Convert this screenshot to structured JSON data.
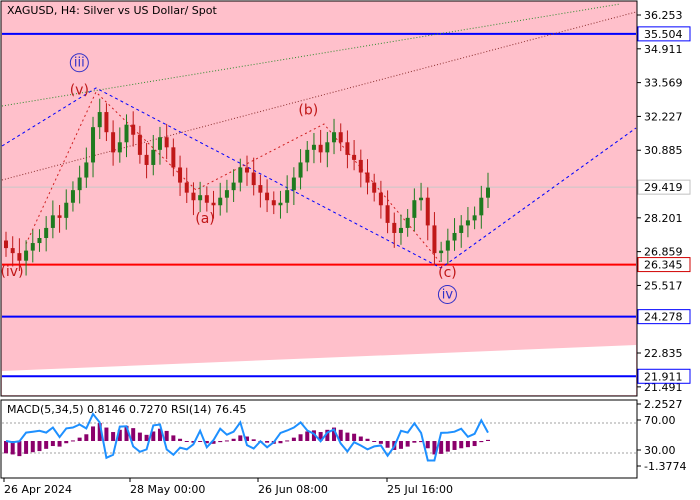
{
  "header": {
    "title": "XAGUSD, H4:  Silver vs US Dollar/ Spot"
  },
  "colors": {
    "background": "#ffffff",
    "chart_area": "#ffc0cb",
    "support_line": "#ff0000",
    "level_line": "#0000ff",
    "wave_label": "#c01818",
    "primary_wave": "#3030c8",
    "dotted_trend": "#0000ff",
    "rsi_line": "#1e90ff",
    "macd_hist": "#8b006b"
  },
  "price_axis": {
    "ticks": [
      "36.253",
      "34.911",
      "33.569",
      "32.227",
      "30.885",
      "28.201",
      "26.859",
      "25.517",
      "22.835",
      "21.491"
    ],
    "tick_values": [
      36.253,
      34.911,
      33.569,
      32.227,
      30.885,
      28.201,
      26.859,
      25.517,
      22.835,
      21.491
    ]
  },
  "price_markers": [
    {
      "label": "35.504",
      "value": 35.504,
      "kind": "level"
    },
    {
      "label": "29.419",
      "value": 29.419,
      "kind": "current"
    },
    {
      "label": "26.345",
      "value": 26.345,
      "kind": "support"
    },
    {
      "label": "24.278",
      "value": 24.278,
      "kind": "level"
    },
    {
      "label": "21.911",
      "value": 21.911,
      "kind": "level"
    }
  ],
  "wave_labels": [
    {
      "text": "(iv)",
      "style": "minor",
      "date": "2024-04-26",
      "price": 25.9
    },
    {
      "text": "(v)",
      "style": "minor",
      "date": "2024-05-11",
      "price": 33.1
    },
    {
      "text": "iii",
      "style": "primary",
      "date": "2024-05-11",
      "price": 34.2
    },
    {
      "text": "(a)",
      "style": "minor",
      "date": "2024-06-08",
      "price": 28.0
    },
    {
      "text": "(b)",
      "style": "minor",
      "date": "2024-07-01",
      "price": 32.3
    },
    {
      "text": "(c)",
      "style": "minor",
      "date": "2024-08-01",
      "price": 25.85
    },
    {
      "text": "iv",
      "style": "primary",
      "date": "2024-08-01",
      "price": 25.0
    }
  ],
  "chart_data": {
    "type": "candlestick",
    "symbol": "XAGUSD",
    "timeframe": "H4",
    "x_ticks": [
      "26 Apr 2024",
      "28 May 00:00",
      "26 Jun 08:00",
      "25 Jul 16:00"
    ],
    "ylim": [
      21.0,
      36.7
    ],
    "current_price": 29.419,
    "horizontal_levels": [
      35.504,
      26.345,
      24.278,
      21.911
    ],
    "series": [
      {
        "name": "XAGUSD",
        "close": [
          27.0,
          26.8,
          26.5,
          26.9,
          27.2,
          27.4,
          27.8,
          28.3,
          28.2,
          28.8,
          29.3,
          29.8,
          30.4,
          31.8,
          32.4,
          31.6,
          30.8,
          31.2,
          31.9,
          31.5,
          30.7,
          30.3,
          30.9,
          31.4,
          31.0,
          30.2,
          29.6,
          29.2,
          28.9,
          29.1,
          28.8,
          28.7,
          29.0,
          29.3,
          29.6,
          30.2,
          30.0,
          29.5,
          29.2,
          28.9,
          28.7,
          28.8,
          29.3,
          29.8,
          30.4,
          30.9,
          31.1,
          30.8,
          31.2,
          31.6,
          31.2,
          30.7,
          30.5,
          30.0,
          29.6,
          29.2,
          28.7,
          28.0,
          27.6,
          27.8,
          28.2,
          28.9,
          29.0,
          27.9,
          26.8,
          26.9,
          27.3,
          27.6,
          27.9,
          28.1,
          28.3,
          29.0,
          29.4
        ]
      }
    ]
  },
  "indicators": {
    "label": "MACD(5,34,5) 0.8146 0.7270 RSI(14) 76.45",
    "axis_ticks": [
      "2.2527",
      "70.00",
      "30.00",
      "-1.3774"
    ],
    "rsi_levels": [
      70,
      30
    ],
    "rsi_last": 76.45,
    "macd_main": 0.8146,
    "macd_signal": 0.727
  }
}
